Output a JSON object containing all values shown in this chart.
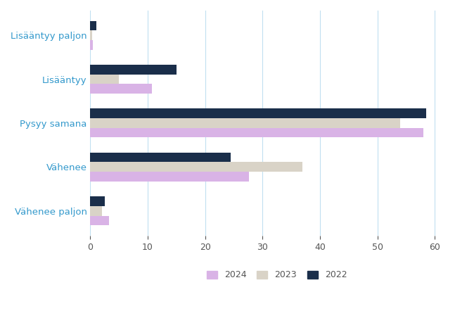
{
  "categories": [
    "Lisääntyy paljon",
    "Lisääntyy",
    "Pysyy samana",
    "Vähenee",
    "Vähenee paljon"
  ],
  "series": {
    "2024": [
      0.4,
      10.7,
      58.0,
      27.6,
      3.3
    ],
    "2023": [
      0.3,
      5.0,
      54.0,
      37.0,
      2.0
    ],
    "2022": [
      1.0,
      15.0,
      58.5,
      24.5,
      2.5
    ]
  },
  "colors": {
    "2024": "#d9b3e6",
    "2023": "#d9d3c7",
    "2022": "#1a2e4a"
  },
  "xlim": [
    0,
    65
  ],
  "xticks": [
    0,
    10,
    20,
    30,
    40,
    50,
    60
  ],
  "ylabel_color": "#3399cc",
  "grid_color": "#c0dff0",
  "background_color": "#ffffff",
  "bar_height": 0.22,
  "label_fontsize": 9.5,
  "tick_fontsize": 9
}
